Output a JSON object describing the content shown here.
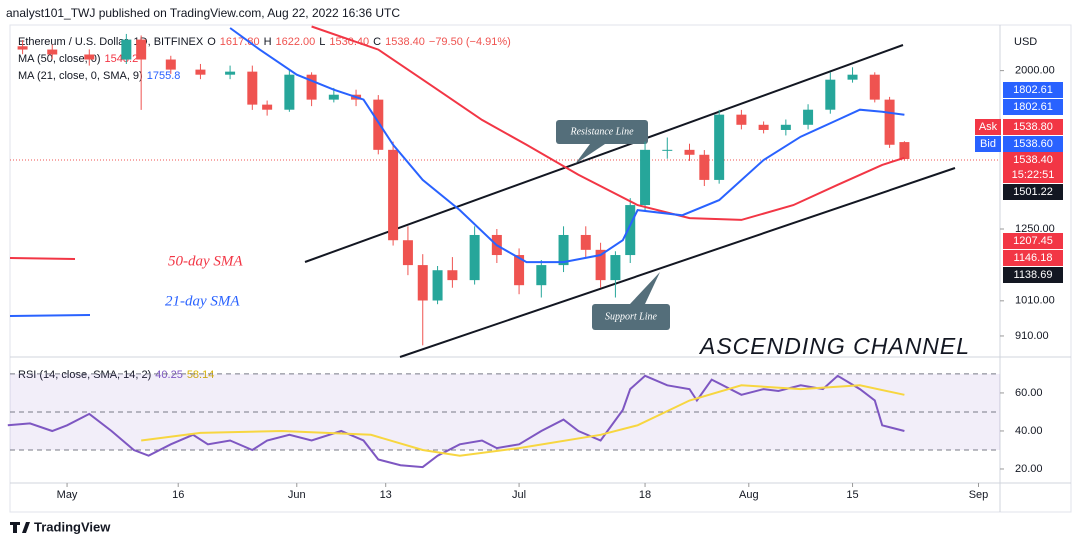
{
  "header": "analyst101_TWJ published on TradingView.com, Aug 22, 2022 16:36 UTC",
  "legend": {
    "symbol": "Ethereum / U.S. Dollar, 1D, BITFINEX",
    "ohlc": [
      {
        "key": "O",
        "value": "1617.80"
      },
      {
        "key": "H",
        "value": "1622.00"
      },
      {
        "key": "L",
        "value": "1530.40"
      },
      {
        "key": "C",
        "value": "1538.40"
      }
    ],
    "change": "−79.50 (−4.91%)",
    "ma50": {
      "label": "MA (50, close, 0)",
      "value": "1548.2"
    },
    "ma21": {
      "label": "MA (21, close, 0, SMA, 9)",
      "value": "1755.8"
    },
    "rsi": {
      "label": "RSI (14, close, SMA, 14, 2)",
      "values": [
        "40.25",
        "58.14"
      ]
    }
  },
  "currency": "USD",
  "price_labels": [
    {
      "text": "1802.61",
      "color": "#2962ff"
    },
    {
      "text": "1802.61",
      "color": "#2962ff"
    },
    {
      "tag": "Ask",
      "text": "1538.80",
      "color": "#f23645"
    },
    {
      "tag": "Bid",
      "text": "1538.60",
      "color": "#2962ff"
    },
    {
      "text": "1538.40",
      "sub": "15:22:51",
      "color": "#f23645"
    },
    {
      "text": "1501.22",
      "color": "#131722"
    },
    {
      "text": "1207.45",
      "color": "#f23645"
    },
    {
      "text": "1146.18",
      "color": "#f23645"
    },
    {
      "text": "1138.69",
      "color": "#131722"
    }
  ],
  "annotations": {
    "resistance": "Resistance Line",
    "support": "Support Line",
    "title": "ASCENDING CHANNEL",
    "sma50": "50-day SMA",
    "sma21": "21-day SMA"
  },
  "footer": "TradingView",
  "chart_data": [
    {
      "type": "candlestick",
      "log_scale": true,
      "xlim": [
        -7.7,
        125.9
      ],
      "ylim": [
        860,
        2290
      ],
      "xticks": [
        {
          "value": 0,
          "label": "May"
        },
        {
          "value": 15,
          "label": "16"
        },
        {
          "value": 31,
          "label": "Jun"
        },
        {
          "value": 43,
          "label": "13"
        },
        {
          "value": 61,
          "label": "Jul"
        },
        {
          "value": 78,
          "label": "18"
        },
        {
          "value": 92,
          "label": "Aug"
        },
        {
          "value": 106,
          "label": "15"
        },
        {
          "value": 123,
          "label": "Sep"
        }
      ],
      "yticks": [
        {
          "value": 2000,
          "label": "2000.00"
        },
        {
          "value": 1250,
          "label": "1250.00"
        },
        {
          "value": 1010,
          "label": "1010.00"
        },
        {
          "value": 910,
          "label": "910.00"
        }
      ],
      "up_color": "#26a69a",
      "down_color": "#ef5350",
      "candles": {
        "x": [
          -6,
          -2,
          3,
          8,
          10,
          14,
          18,
          22,
          25,
          27,
          30,
          33,
          36,
          39,
          42,
          44,
          46,
          48,
          50,
          52,
          55,
          58,
          61,
          64,
          67,
          70,
          72,
          74,
          76,
          78,
          81,
          84,
          86,
          88,
          91,
          94,
          97,
          100,
          103,
          106,
          109,
          111,
          113
        ],
        "open": [
          2150,
          2129,
          2098,
          2067,
          2193,
          2067,
          2006,
          1976,
          1994,
          1808,
          1781,
          1976,
          1835,
          1862,
          1835,
          1581,
          1209,
          1123,
          1011,
          1106,
          1074,
          1228,
          1157,
          1058,
          1123,
          1228,
          1175,
          1074,
          1157,
          1342,
          1581,
          1581,
          1558,
          1446,
          1755,
          1703,
          1677,
          1703,
          1781,
          1947,
          1976,
          1835,
          1617.8
        ],
        "high": [
          2190,
          2160,
          2130,
          2230,
          2220,
          2090,
          2040,
          2030,
          2030,
          1830,
          2000,
          1990,
          1900,
          1890,
          1860,
          1620,
          1260,
          1160,
          1120,
          1150,
          1260,
          1250,
          1180,
          1140,
          1260,
          1260,
          1200,
          1170,
          1370,
          1620,
          1640,
          1610,
          1580,
          1780,
          1780,
          1720,
          1730,
          1810,
          1990,
          2020,
          1990,
          1850,
          1622
        ],
        "low": [
          2100,
          2070,
          2030,
          2040,
          1780,
          1980,
          1950,
          1950,
          1780,
          1750,
          1770,
          1800,
          1820,
          1800,
          1560,
          1190,
          1090,
          885,
          1000,
          1050,
          1060,
          1130,
          1030,
          1020,
          1100,
          1150,
          1050,
          1020,
          1130,
          1320,
          1540,
          1530,
          1420,
          1430,
          1680,
          1660,
          1650,
          1680,
          1760,
          1930,
          1820,
          1590,
          1530.4
        ],
        "close": [
          2129,
          2098,
          2067,
          2193,
          2067,
          2006,
          1976,
          1994,
          1808,
          1781,
          1976,
          1835,
          1862,
          1835,
          1581,
          1209,
          1123,
          1011,
          1106,
          1074,
          1228,
          1157,
          1058,
          1123,
          1228,
          1175,
          1074,
          1157,
          1342,
          1581,
          1581,
          1558,
          1446,
          1755,
          1703,
          1677,
          1703,
          1781,
          1947,
          1976,
          1835,
          1605,
          1538.4
        ]
      },
      "series": [
        {
          "name": "MA (50, close, 0)",
          "color": "#f23645",
          "x": [
            33,
            42,
            49,
            56,
            62,
            69,
            77,
            84,
            91,
            98,
            104,
            110,
            113
          ],
          "values": [
            2280,
            2129,
            1918,
            1728,
            1605,
            1468,
            1342,
            1291,
            1284,
            1342,
            1425,
            1512,
            1544
          ]
        },
        {
          "name": "MA (21, close, 0, SMA, 9)",
          "color": "#2962ff",
          "x": [
            22,
            26,
            31,
            36,
            40,
            44,
            48,
            53,
            58,
            62,
            67,
            72,
            75,
            77,
            83,
            88,
            94,
            99,
            104,
            107,
            110,
            113
          ],
          "values": [
            2270,
            2129,
            1976,
            1890,
            1835,
            1605,
            1446,
            1322,
            1191,
            1133,
            1133,
            1157,
            1209,
            1322,
            1302,
            1362,
            1534,
            1644,
            1728,
            1781,
            1770,
            1754
          ]
        }
      ]
    },
    {
      "type": "line",
      "xlim": [
        -7.7,
        125.9
      ],
      "ylim": [
        14.2,
        74.7
      ],
      "yticks": [
        {
          "value": 60,
          "label": "60.00"
        },
        {
          "value": 40,
          "label": "40.00"
        },
        {
          "value": 20,
          "label": "20.00"
        }
      ],
      "levels": [
        70,
        50,
        30
      ],
      "series": [
        {
          "name": "RSI",
          "color": "#7e57c2",
          "x": [
            -8,
            -5,
            -2,
            0,
            3,
            6,
            9,
            11,
            14,
            17,
            19,
            22,
            25,
            27,
            30,
            33,
            37,
            40,
            42,
            45,
            48,
            50,
            53,
            56,
            58,
            61,
            64,
            67,
            69,
            72,
            75,
            76,
            78,
            81,
            84,
            85,
            87,
            91,
            94,
            96,
            99,
            102,
            104,
            107,
            109,
            110,
            113
          ],
          "values": [
            43,
            44,
            40,
            43,
            49,
            40,
            30,
            27,
            33,
            38,
            33,
            35,
            30,
            35,
            38,
            35,
            40,
            35,
            25,
            22,
            21,
            27,
            33,
            35,
            31,
            33,
            40,
            46,
            40,
            35,
            51,
            62,
            69,
            64,
            62,
            56,
            67,
            59,
            62,
            61,
            64,
            62,
            69,
            62,
            56,
            43,
            40
          ]
        },
        {
          "name": "RSI-based MA",
          "color": "#f7d640",
          "x": [
            10,
            18,
            29,
            41,
            48,
            53,
            61,
            72,
            77,
            84,
            91,
            99,
            107,
            113
          ],
          "values": [
            35,
            39,
            40,
            38,
            30,
            27,
            31,
            38,
            43,
            56,
            64,
            62,
            64,
            59
          ]
        }
      ]
    }
  ]
}
